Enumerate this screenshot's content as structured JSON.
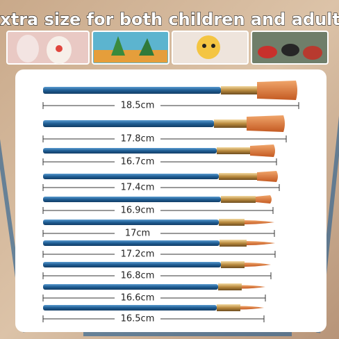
{
  "header": {
    "title": "Extra size for both children and adults"
  },
  "brushes": [
    {
      "label": "18.5cm"
    },
    {
      "label": "17.8cm"
    },
    {
      "label": "16.7cm"
    },
    {
      "label": "17.4cm"
    },
    {
      "label": "16.9cm"
    },
    {
      "label": "17cm"
    },
    {
      "label": "17.2cm"
    },
    {
      "label": "16.8cm"
    },
    {
      "label": "16.6cm"
    },
    {
      "label": "16.5cm"
    }
  ]
}
